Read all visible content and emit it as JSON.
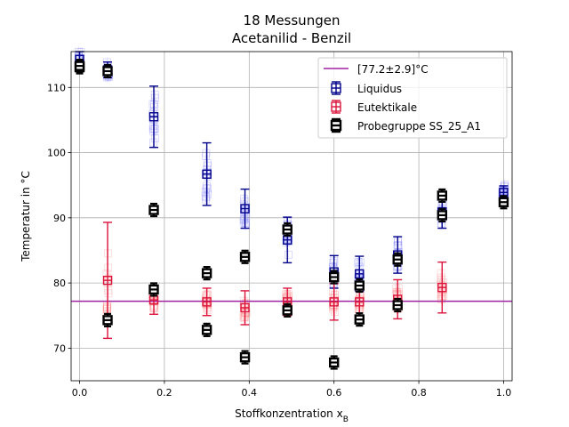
{
  "chart_data": {
    "type": "scatter",
    "title_lines": [
      "18 Messungen",
      "Acetanilid - Benzil"
    ],
    "xlabel": "Stoffkonzentration x_B",
    "ylabel": "Temperatur in °C",
    "xlim": [
      -0.02,
      1.02
    ],
    "ylim": [
      65,
      115.5
    ],
    "xticks": [
      "0.0",
      "0.2",
      "0.4",
      "0.6",
      "0.8",
      "1.0"
    ],
    "xtick_values": [
      0.0,
      0.2,
      0.4,
      0.6,
      0.8,
      1.0
    ],
    "yticks": [
      "70",
      "80",
      "90",
      "100",
      "110"
    ],
    "ytick_values": [
      70,
      80,
      90,
      100,
      110
    ],
    "grid": true,
    "legend_position": "top-right",
    "colors": {
      "liquidus": "#00008b",
      "eutektikale": "#dc143c",
      "probe": "#000000",
      "line": "#a020a0",
      "liquidus_cloud": "#6666ff",
      "eutektikale_cloud": "#ff7777"
    },
    "reference_line": {
      "label": "[77.2±2.9]°C",
      "y": 77.2
    },
    "series": [
      {
        "name": "Liquidus",
        "x": [
          0.0,
          0.066,
          0.175,
          0.3,
          0.39,
          0.49,
          0.6,
          0.66,
          0.75,
          0.855,
          1.0
        ],
        "y": [
          114.3,
          112.7,
          105.5,
          96.7,
          91.4,
          86.6,
          81.7,
          81.4,
          84.3,
          90.9,
          93.9
        ],
        "err": [
          1.2,
          1.2,
          4.7,
          4.8,
          3.0,
          3.5,
          2.5,
          2.7,
          2.8,
          2.5,
          1.0
        ]
      },
      {
        "name": "Eutektikale",
        "x": [
          0.066,
          0.175,
          0.3,
          0.39,
          0.49,
          0.6,
          0.66,
          0.75,
          0.855
        ],
        "y": [
          80.4,
          77.4,
          77.1,
          76.2,
          77.1,
          77.1,
          77.1,
          77.5,
          79.3
        ],
        "err": [
          8.9,
          2.2,
          2.1,
          2.6,
          2.1,
          2.8,
          2.2,
          3.0,
          3.9
        ]
      },
      {
        "name": "Probegruppe SS_25_A1",
        "x": [
          0.0,
          0.0,
          0.066,
          0.066,
          0.175,
          0.175,
          0.3,
          0.3,
          0.39,
          0.39,
          0.49,
          0.49,
          0.6,
          0.6,
          0.66,
          0.66,
          0.75,
          0.75,
          0.855,
          0.855,
          1.0
        ],
        "y": [
          113.1,
          113.3,
          112.5,
          74.3,
          91.2,
          79.0,
          81.5,
          72.8,
          84.0,
          68.6,
          88.2,
          75.8,
          80.9,
          67.8,
          79.6,
          74.4,
          83.6,
          76.6,
          93.4,
          90.4,
          92.4
        ]
      }
    ]
  }
}
